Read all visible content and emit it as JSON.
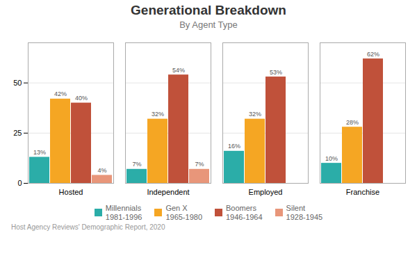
{
  "chart_data": {
    "type": "bar",
    "title": "Generational Breakdown",
    "subtitle": "By Agent Type",
    "caption": "Host Agency Reviews' Demographic Report, 2020",
    "categories": [
      "Hosted",
      "Independent",
      "Employed",
      "Franchise"
    ],
    "series": [
      {
        "name": "Millennials\n1981-1996",
        "color": "#2BADA8",
        "values": [
          13,
          7,
          16,
          10
        ],
        "value_labels": [
          "13%",
          "7%",
          "16%",
          "10%"
        ]
      },
      {
        "name": "Gen X\n1965-1980",
        "color": "#F5A623",
        "values": [
          42,
          32,
          32,
          28
        ],
        "value_labels": [
          "42%",
          "32%",
          "32%",
          "28%"
        ]
      },
      {
        "name": "Boomers\n1946-1964",
        "color": "#C0513A",
        "values": [
          40,
          54,
          53,
          62
        ],
        "value_labels": [
          "40%",
          "54%",
          "53%",
          "62%"
        ]
      },
      {
        "name": "Silent\n1928-1945",
        "color": "#E8967A",
        "values": [
          4,
          7,
          0,
          0
        ],
        "value_labels": [
          "4%",
          "7%",
          null,
          null
        ]
      }
    ],
    "ylim": [
      0,
      70
    ],
    "yticks": [
      0,
      25,
      50
    ],
    "grid": true,
    "data_labels": true,
    "legend": "bottom"
  }
}
